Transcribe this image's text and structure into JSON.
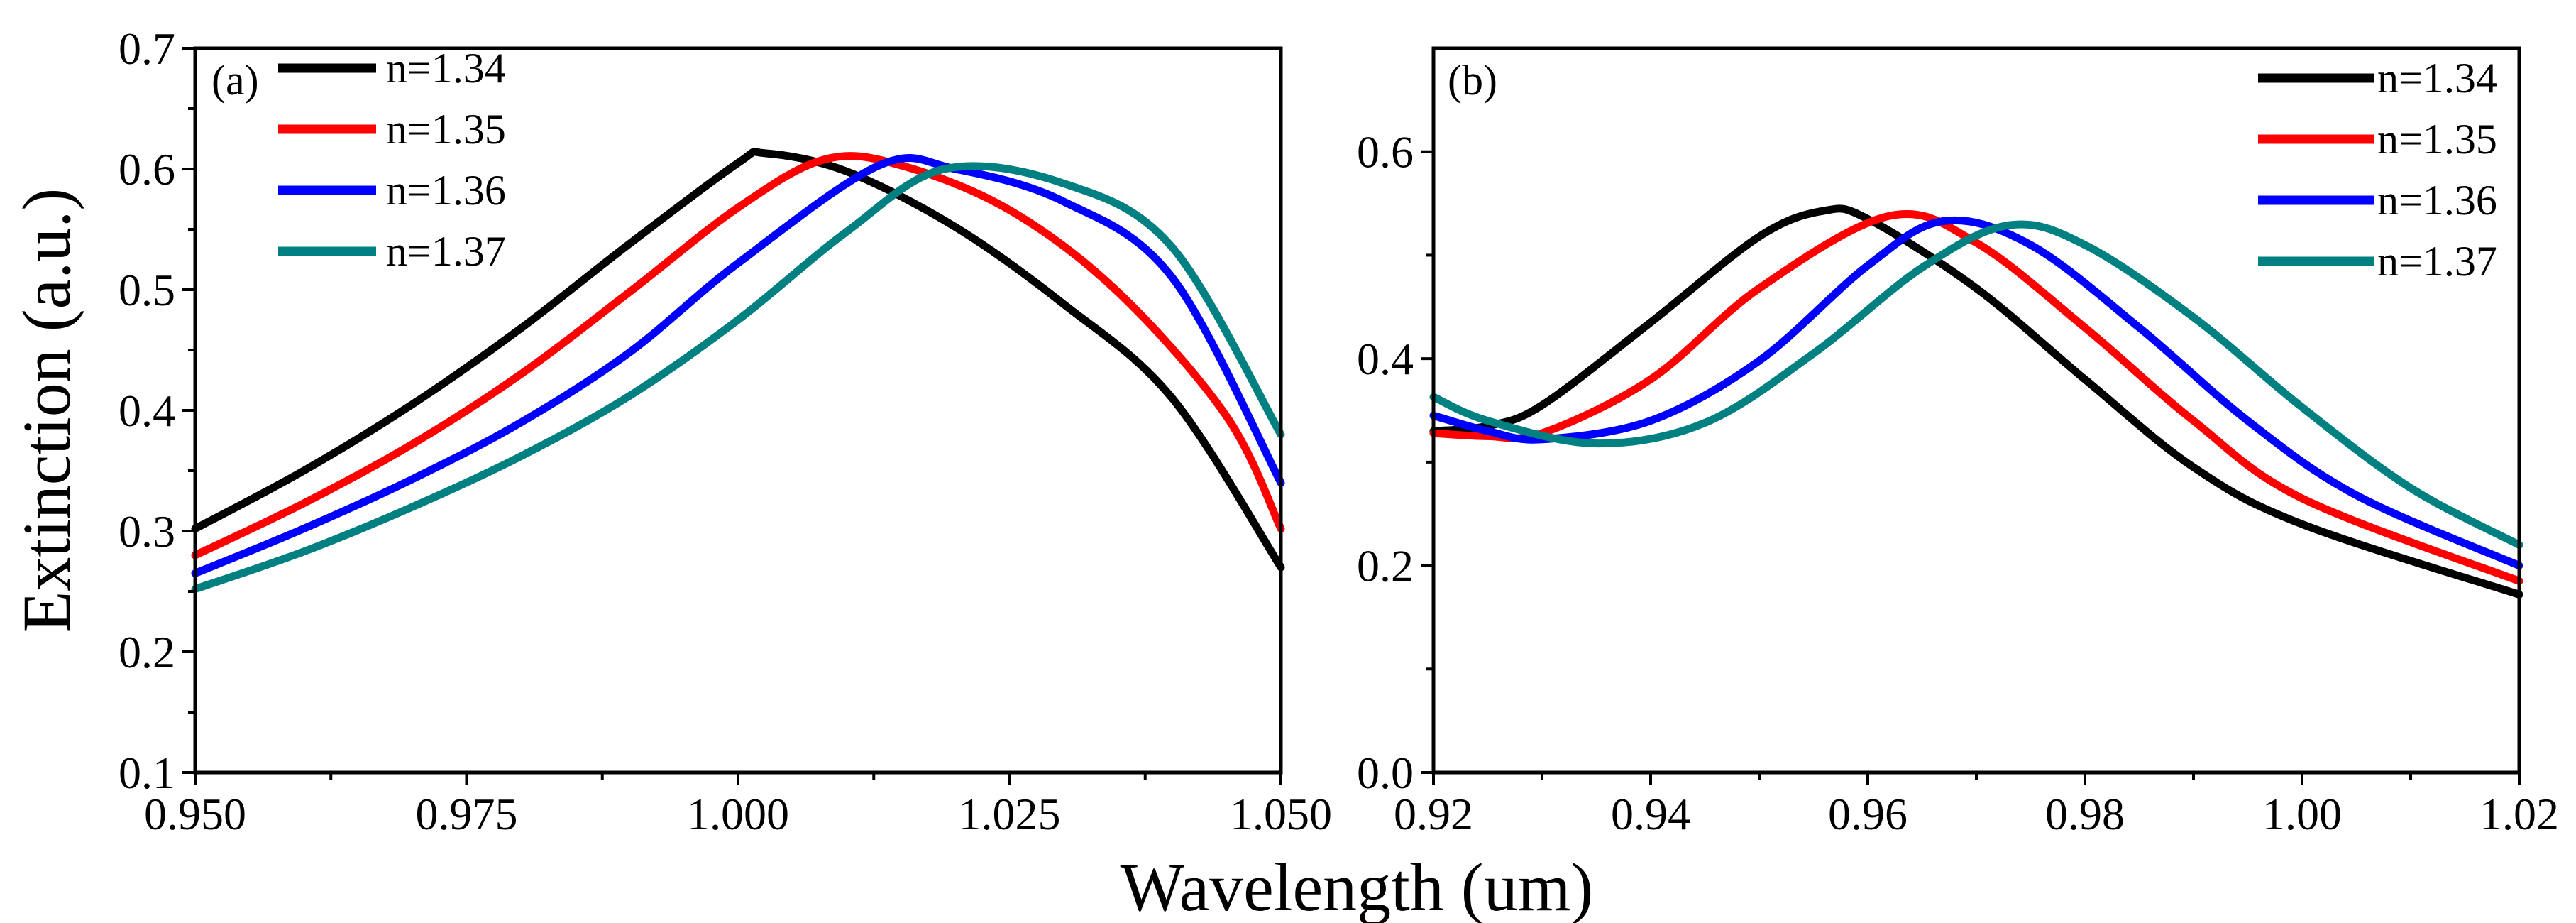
{
  "figure": {
    "xlabel": "Wavelength (um)",
    "ylabel": "Extinction (a.u.)"
  },
  "chart_data": [
    {
      "type": "line",
      "panel_label": "(a)",
      "xlabel": "Wavelength (um)",
      "ylabel": "Extinction (a.u.)",
      "xlim": [
        0.95,
        1.05
      ],
      "ylim": [
        0.1,
        0.7
      ],
      "xticks": [
        0.95,
        0.975,
        1.0,
        1.025,
        1.05
      ],
      "xtick_labels": [
        "0.950",
        "0.975",
        "1.000",
        "1.025",
        "1.050"
      ],
      "yticks": [
        0.1,
        0.2,
        0.3,
        0.4,
        0.5,
        0.6,
        0.7
      ],
      "ytick_labels": [
        "0.1",
        "0.2",
        "0.3",
        "0.4",
        "0.5",
        "0.6",
        "0.7"
      ],
      "legend_position": "top-left",
      "series": [
        {
          "name": "n=1.34",
          "color": "#000000",
          "x": [
            0.95,
            0.96,
            0.97,
            0.98,
            0.99,
            1.0,
            1.0025,
            1.01,
            1.02,
            1.03,
            1.04,
            1.05
          ],
          "y": [
            0.302,
            0.35,
            0.405,
            0.468,
            0.538,
            0.605,
            0.613,
            0.598,
            0.552,
            0.488,
            0.41,
            0.27
          ]
        },
        {
          "name": "n=1.35",
          "color": "#ff0000",
          "x": [
            0.95,
            0.96,
            0.97,
            0.98,
            0.99,
            1.0,
            1.008,
            1.015,
            1.025,
            1.035,
            1.045,
            1.05
          ],
          "y": [
            0.28,
            0.323,
            0.372,
            0.43,
            0.498,
            0.568,
            0.608,
            0.603,
            0.566,
            0.498,
            0.395,
            0.302
          ]
        },
        {
          "name": "n=1.36",
          "color": "#0000ff",
          "x": [
            0.95,
            0.96,
            0.97,
            0.98,
            0.99,
            1.0,
            1.013,
            1.02,
            1.03,
            1.04,
            1.05
          ],
          "y": [
            0.265,
            0.302,
            0.343,
            0.39,
            0.448,
            0.522,
            0.603,
            0.6,
            0.573,
            0.51,
            0.34
          ]
        },
        {
          "name": "n=1.37",
          "color": "#008080",
          "x": [
            0.95,
            0.96,
            0.97,
            0.98,
            0.99,
            1.0,
            1.01,
            1.019,
            1.03,
            1.04,
            1.05
          ],
          "y": [
            0.252,
            0.283,
            0.32,
            0.362,
            0.412,
            0.475,
            0.548,
            0.6,
            0.588,
            0.535,
            0.38
          ]
        }
      ]
    },
    {
      "type": "line",
      "panel_label": "(b)",
      "xlabel": "Wavelength (um)",
      "ylabel": "",
      "xlim": [
        0.92,
        1.02
      ],
      "ylim": [
        0.0,
        0.7
      ],
      "xticks": [
        0.92,
        0.94,
        0.96,
        0.98,
        1.0,
        1.02
      ],
      "xtick_labels": [
        "0.92",
        "0.94",
        "0.96",
        "0.98",
        "1.00",
        "1.02"
      ],
      "yticks": [
        0.0,
        0.2,
        0.4,
        0.6
      ],
      "ytick_labels": [
        "0.0",
        "0.2",
        "0.4",
        "0.6"
      ],
      "legend_position": "top-right",
      "series": [
        {
          "name": "n=1.34",
          "color": "#000000",
          "x": [
            0.92,
            0.925,
            0.93,
            0.94,
            0.95,
            0.956,
            0.96,
            0.97,
            0.98,
            0.99,
            1.0,
            1.02
          ],
          "y": [
            0.33,
            0.335,
            0.355,
            0.435,
            0.518,
            0.543,
            0.535,
            0.468,
            0.38,
            0.295,
            0.24,
            0.172
          ]
        },
        {
          "name": "n=1.35",
          "color": "#ff0000",
          "x": [
            0.92,
            0.925,
            0.93,
            0.94,
            0.95,
            0.962,
            0.97,
            0.98,
            0.99,
            1.0,
            1.02
          ],
          "y": [
            0.328,
            0.325,
            0.328,
            0.38,
            0.468,
            0.538,
            0.512,
            0.43,
            0.34,
            0.265,
            0.185
          ]
        },
        {
          "name": "n=1.36",
          "color": "#0000ff",
          "x": [
            0.92,
            0.925,
            0.93,
            0.94,
            0.95,
            0.96,
            0.967,
            0.975,
            0.985,
            0.995,
            1.005,
            1.02
          ],
          "y": [
            0.345,
            0.33,
            0.322,
            0.34,
            0.398,
            0.49,
            0.533,
            0.51,
            0.43,
            0.34,
            0.268,
            0.2
          ]
        },
        {
          "name": "n=1.37",
          "color": "#008080",
          "x": [
            0.92,
            0.925,
            0.935,
            0.945,
            0.955,
            0.965,
            0.973,
            0.98,
            0.99,
            1.0,
            1.01,
            1.02
          ],
          "y": [
            0.363,
            0.34,
            0.318,
            0.338,
            0.405,
            0.488,
            0.529,
            0.51,
            0.44,
            0.353,
            0.275,
            0.22
          ]
        }
      ]
    }
  ]
}
